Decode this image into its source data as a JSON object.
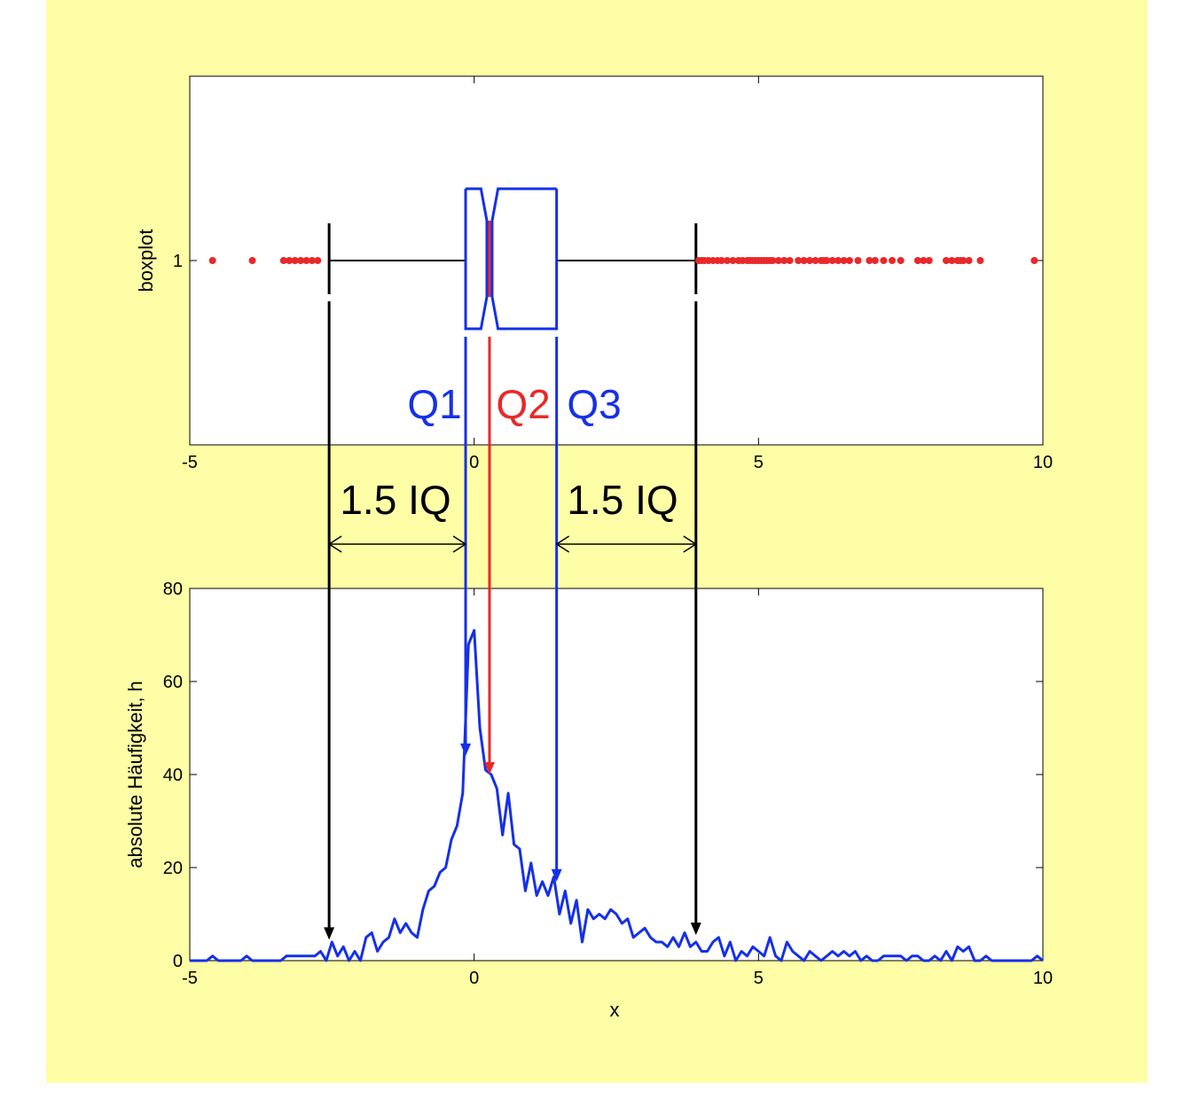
{
  "colors": {
    "background": "#fefea6",
    "blue": "#1530e8",
    "red": "#e8282a",
    "black": "#000000"
  },
  "chart_data": [
    {
      "type": "boxplot",
      "ylabel": "boxplot",
      "xlim": [
        -5,
        10
      ],
      "xticks": [
        "-5",
        "0",
        "5",
        "10"
      ],
      "yticks": [
        "1"
      ],
      "box": {
        "q1": -0.15,
        "median": 0.27,
        "q3": 1.45,
        "notch_low": 0.12,
        "notch_high": 0.42,
        "whisker_low": -2.55,
        "whisker_high": 3.9
      },
      "outliers": [
        -4.6,
        -3.9,
        -3.35,
        -3.25,
        -3.15,
        -3.05,
        -2.95,
        -2.85,
        -2.75,
        3.95,
        4.0,
        4.05,
        4.12,
        4.2,
        4.28,
        4.35,
        4.45,
        4.55,
        4.65,
        4.72,
        4.8,
        4.85,
        4.9,
        4.95,
        5.0,
        5.05,
        5.1,
        5.15,
        5.2,
        5.25,
        5.35,
        5.45,
        5.55,
        5.7,
        5.8,
        5.9,
        6.0,
        6.1,
        6.15,
        6.2,
        6.3,
        6.4,
        6.5,
        6.6,
        6.75,
        6.95,
        7.05,
        7.2,
        7.35,
        7.5,
        7.8,
        7.9,
        8.0,
        8.3,
        8.4,
        8.5,
        8.55,
        8.6,
        8.7,
        8.9,
        9.85
      ],
      "annotations": {
        "q1": "Q1",
        "q2": "Q2",
        "q3": "Q3"
      }
    },
    {
      "type": "line",
      "xlabel": "x",
      "ylabel": "absolute Häufigkeit, h",
      "xlim": [
        -5,
        10
      ],
      "ylim": [
        0,
        80
      ],
      "xticks": [
        "-5",
        "0",
        "5",
        "10"
      ],
      "yticks": [
        "0",
        "20",
        "40",
        "60",
        "80"
      ],
      "x": [
        -5,
        -4.9,
        -4.8,
        -4.7,
        -4.6,
        -4.5,
        -4.4,
        -4.3,
        -4.2,
        -4.1,
        -4.0,
        -3.9,
        -3.8,
        -3.7,
        -3.6,
        -3.5,
        -3.4,
        -3.3,
        -3.2,
        -3.1,
        -3.0,
        -2.9,
        -2.8,
        -2.7,
        -2.6,
        -2.5,
        -2.4,
        -2.3,
        -2.2,
        -2.1,
        -2.0,
        -1.9,
        -1.8,
        -1.7,
        -1.6,
        -1.5,
        -1.4,
        -1.3,
        -1.2,
        -1.1,
        -1.0,
        -0.9,
        -0.8,
        -0.7,
        -0.6,
        -0.5,
        -0.4,
        -0.3,
        -0.2,
        -0.1,
        0.0,
        0.1,
        0.2,
        0.3,
        0.4,
        0.5,
        0.6,
        0.7,
        0.8,
        0.9,
        1.0,
        1.1,
        1.2,
        1.3,
        1.4,
        1.5,
        1.6,
        1.7,
        1.8,
        1.9,
        2.0,
        2.1,
        2.2,
        2.3,
        2.4,
        2.5,
        2.6,
        2.7,
        2.8,
        2.9,
        3.0,
        3.1,
        3.2,
        3.3,
        3.4,
        3.5,
        3.6,
        3.7,
        3.8,
        3.9,
        4.0,
        4.1,
        4.2,
        4.3,
        4.4,
        4.5,
        4.6,
        4.7,
        4.8,
        4.9,
        5.0,
        5.1,
        5.2,
        5.3,
        5.4,
        5.5,
        5.6,
        5.7,
        5.8,
        5.9,
        6.0,
        6.1,
        6.2,
        6.3,
        6.4,
        6.5,
        6.6,
        6.7,
        6.8,
        6.9,
        7.0,
        7.1,
        7.2,
        7.3,
        7.4,
        7.5,
        7.6,
        7.7,
        7.8,
        7.9,
        8.0,
        8.1,
        8.2,
        8.3,
        8.4,
        8.5,
        8.6,
        8.7,
        8.8,
        8.9,
        9.0,
        9.1,
        9.2,
        9.3,
        9.4,
        9.5,
        9.6,
        9.7,
        9.8,
        9.9,
        10.0
      ],
      "y": [
        0,
        0,
        0,
        0,
        1,
        0,
        0,
        0,
        0,
        0,
        1,
        0,
        0,
        0,
        0,
        0,
        0,
        1,
        1,
        1,
        1,
        1,
        1,
        2,
        0,
        4,
        1,
        3,
        0,
        2,
        0,
        5,
        6,
        2,
        4,
        5,
        9,
        6,
        8,
        6,
        5,
        11,
        15,
        16,
        19,
        20,
        26,
        29,
        36,
        68,
        71,
        50,
        41,
        40,
        37,
        27,
        36,
        25,
        24,
        15,
        21,
        14,
        17,
        14,
        18,
        10,
        15,
        8,
        13,
        4,
        11,
        9,
        10,
        9,
        11,
        10,
        8,
        9,
        5,
        6,
        7,
        5,
        4,
        4,
        3,
        5,
        3,
        6,
        3,
        4,
        2,
        2,
        4,
        5,
        1,
        4,
        0,
        2,
        1,
        3,
        2,
        1,
        5,
        1,
        0,
        4,
        2,
        1,
        0,
        2,
        1,
        0,
        1,
        2,
        1,
        2,
        1,
        2,
        0,
        1,
        0,
        0,
        1,
        1,
        1,
        1,
        0,
        1,
        1,
        0,
        0,
        1,
        0,
        2,
        0,
        3,
        2,
        3,
        0,
        0,
        1,
        0,
        0,
        0,
        0,
        0,
        0,
        0,
        0,
        1,
        0
      ]
    }
  ],
  "annotations": {
    "left_span": "1.5 IQ",
    "right_span": "1.5 IQ"
  }
}
